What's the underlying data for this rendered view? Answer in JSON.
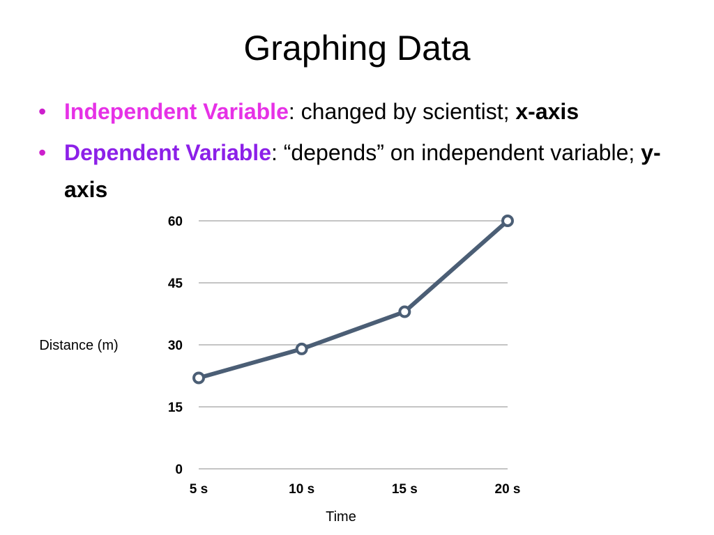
{
  "slide": {
    "title": "Graphing Data",
    "bullets": [
      {
        "term": "Independent Variable",
        "rest": ": changed by scientist; ",
        "axis": "x-axis",
        "color": "#e631e6"
      },
      {
        "term": "Dependent Variable",
        "rest": ": “depends” on independent variable; ",
        "axis": "y-axis",
        "color": "#8c20e8"
      }
    ],
    "bullet_color": "#cc1fcc"
  },
  "chart_data": {
    "type": "line",
    "categories": [
      "5 s",
      "10 s",
      "15 s",
      "20 s"
    ],
    "series": [
      {
        "values": [
          22,
          29,
          38,
          60
        ]
      }
    ],
    "xlabel": "Time",
    "ylabel": "Distance (m)",
    "yticks": [
      0,
      15,
      30,
      45,
      60
    ],
    "ylim": [
      0,
      60
    ],
    "grid": true,
    "line_color": "#4b5e75",
    "grid_color": "#b0b0b0"
  }
}
